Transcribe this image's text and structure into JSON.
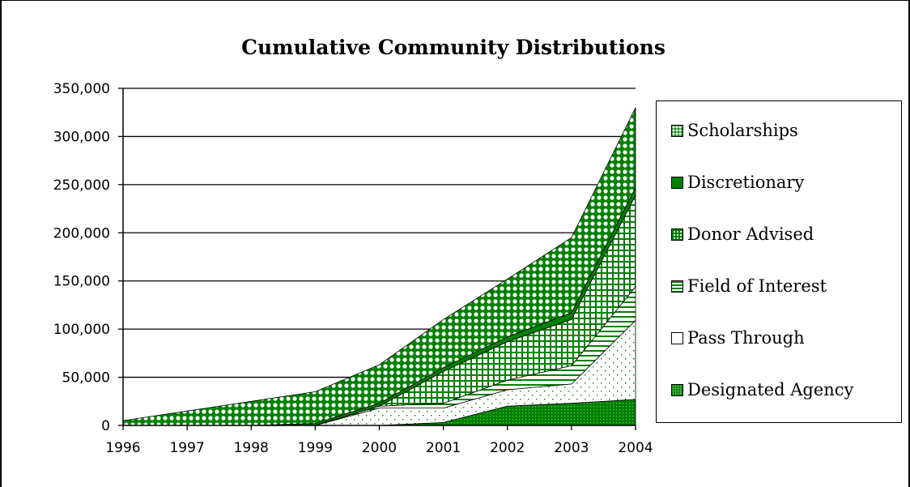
{
  "chart_data": {
    "type": "area",
    "stacked": true,
    "title": "Cumulative Community Distributions",
    "xlabel": "",
    "ylabel": "",
    "x": [
      "1996",
      "1997",
      "1998",
      "1999",
      "2000",
      "2001",
      "2002",
      "2003",
      "2004"
    ],
    "ylim": [
      0,
      350000
    ],
    "yticks": [
      0,
      50000,
      100000,
      150000,
      200000,
      250000,
      300000,
      350000
    ],
    "ytick_labels": [
      "0",
      "50,000",
      "100,000",
      "150,000",
      "200,000",
      "250,000",
      "300,000",
      "350,000"
    ],
    "grid": true,
    "legend_position": "right",
    "series": [
      {
        "name": "Designated Agency",
        "values": [
          0,
          0,
          0,
          0,
          0,
          3000,
          20000,
          23000,
          27000
        ],
        "color": "#008000",
        "pattern": "dots-on-green"
      },
      {
        "name": "Pass Through",
        "values": [
          0,
          0,
          0,
          0,
          18000,
          15000,
          17000,
          20000,
          82000
        ],
        "color": "#ffffff",
        "pattern": "sparse-green-dots"
      },
      {
        "name": "Field of Interest",
        "values": [
          0,
          0,
          0,
          0,
          2000,
          5000,
          10000,
          19000,
          35000
        ],
        "color": "#008000",
        "pattern": "horizontal-lines"
      },
      {
        "name": "Donor Advised",
        "values": [
          0,
          0,
          0,
          0,
          0,
          33000,
          40000,
          48000,
          95000
        ],
        "color": "#008000",
        "pattern": "grid"
      },
      {
        "name": "Discretionary",
        "values": [
          0,
          0,
          0,
          2000,
          3000,
          4000,
          5000,
          7000,
          8000
        ],
        "color": "#008000",
        "pattern": "solid"
      },
      {
        "name": "Scholarships",
        "values": [
          5000,
          15000,
          25000,
          33000,
          40000,
          50000,
          60000,
          78000,
          83000
        ],
        "color": "#008000",
        "pattern": "circles"
      }
    ],
    "legend_order": [
      "Scholarships",
      "Discretionary",
      "Donor Advised",
      "Field of Interest",
      "Pass Through",
      "Designated Agency"
    ]
  }
}
